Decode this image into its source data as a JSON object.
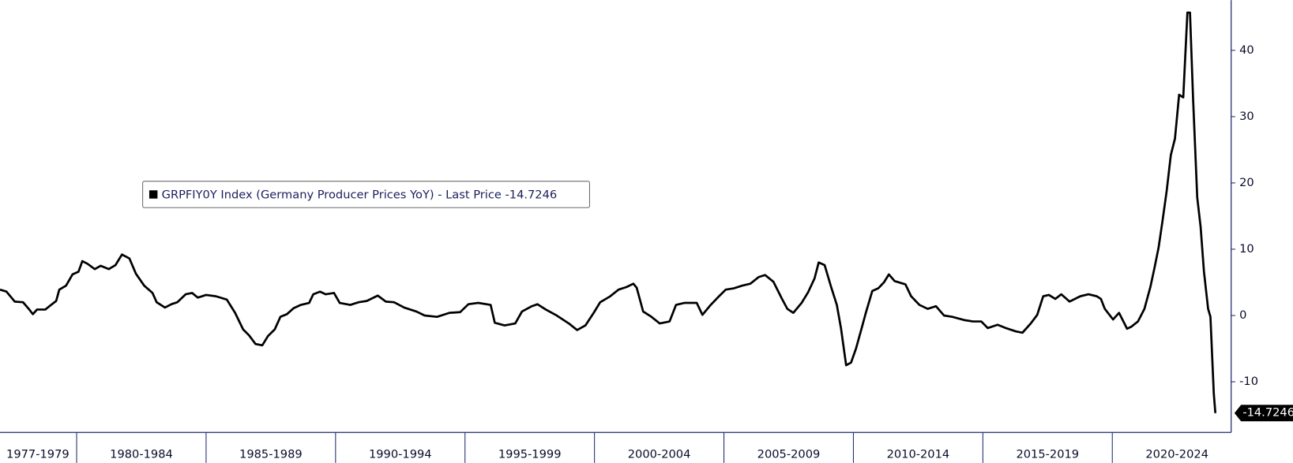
{
  "chart_data": {
    "type": "line",
    "xlim": [
      1977.04,
      2024.59
    ],
    "ylim": [
      -17.64,
      47.58
    ],
    "yticks": [
      -10,
      0,
      10,
      20,
      30,
      40
    ],
    "x_periods": [
      {
        "label": "1977-1979",
        "start": 1977,
        "end": 1980
      },
      {
        "label": "1980-1984",
        "start": 1980,
        "end": 1985
      },
      {
        "label": "1985-1989",
        "start": 1985,
        "end": 1990
      },
      {
        "label": "1990-1994",
        "start": 1990,
        "end": 1995
      },
      {
        "label": "1995-1999",
        "start": 1995,
        "end": 2000
      },
      {
        "label": "2000-2004",
        "start": 2000,
        "end": 2005
      },
      {
        "label": "2005-2009",
        "start": 2005,
        "end": 2010
      },
      {
        "label": "2010-2014",
        "start": 2010,
        "end": 2015
      },
      {
        "label": "2015-2019",
        "start": 2015,
        "end": 2020
      },
      {
        "label": "2020-2024",
        "start": 2020,
        "end": 2025
      }
    ],
    "x": [
      1977.04,
      1977.29,
      1977.61,
      1977.93,
      1978.15,
      1978.31,
      1978.47,
      1978.79,
      1978.95,
      1979.21,
      1979.33,
      1979.59,
      1979.84,
      1980.07,
      1980.22,
      1980.42,
      1980.7,
      1980.93,
      1981.24,
      1981.5,
      1981.75,
      1982.04,
      1982.29,
      1982.61,
      1982.93,
      1983.09,
      1983.41,
      1983.66,
      1983.89,
      1984.21,
      1984.46,
      1984.68,
      1985.0,
      1985.38,
      1985.8,
      1986.12,
      1986.43,
      1986.66,
      1986.91,
      1987.17,
      1987.39,
      1987.65,
      1987.87,
      1988.12,
      1988.38,
      1988.66,
      1988.98,
      1989.14,
      1989.4,
      1989.62,
      1989.94,
      1990.16,
      1990.57,
      1990.89,
      1991.21,
      1991.63,
      1991.94,
      1992.26,
      1992.65,
      1993.12,
      1993.44,
      1993.92,
      1994.4,
      1994.81,
      1995.13,
      1995.51,
      1995.99,
      1996.15,
      1996.53,
      1996.94,
      1997.2,
      1997.58,
      1997.8,
      1998.12,
      1998.54,
      1999.01,
      1999.33,
      1999.65,
      1999.97,
      2000.22,
      2000.61,
      2000.93,
      2001.24,
      2001.5,
      2001.63,
      2001.88,
      2002.2,
      2002.52,
      2002.9,
      2003.15,
      2003.47,
      2003.95,
      2004.17,
      2004.49,
      2004.81,
      2005.07,
      2005.38,
      2005.7,
      2006.02,
      2006.34,
      2006.59,
      2006.91,
      2007.23,
      2007.45,
      2007.68,
      2008.0,
      2008.25,
      2008.5,
      2008.66,
      2008.89,
      2009.14,
      2009.36,
      2009.52,
      2009.72,
      2009.91,
      2010.1,
      2010.32,
      2010.48,
      2010.73,
      2010.96,
      2011.18,
      2011.37,
      2011.59,
      2012.01,
      2012.23,
      2012.55,
      2012.87,
      2013.19,
      2013.5,
      2013.82,
      2014.3,
      2014.62,
      2014.94,
      2015.19,
      2015.57,
      2015.89,
      2016.28,
      2016.53,
      2016.85,
      2017.1,
      2017.33,
      2017.55,
      2017.8,
      2018.03,
      2018.35,
      2018.76,
      2019.08,
      2019.4,
      2019.56,
      2019.71,
      2020.03,
      2020.26,
      2020.57,
      2020.73,
      2020.99,
      2021.24,
      2021.47,
      2021.63,
      2021.79,
      2021.94,
      2022.1,
      2022.26,
      2022.42,
      2022.58,
      2022.74,
      2022.9,
      2023.0,
      2023.12,
      2023.28,
      2023.41,
      2023.54,
      2023.7,
      2023.79,
      2023.92,
      2023.98
    ],
    "series": [
      {
        "name": "GRPFIY0Y Index (Germany Producer Prices YoY) - Last Price -14.7246",
        "color": "#000000",
        "values": [
          3.9,
          3.6,
          2.1,
          2.0,
          1.0,
          0.2,
          0.9,
          0.9,
          1.4,
          2.2,
          3.9,
          4.5,
          6.2,
          6.6,
          8.2,
          7.8,
          7.0,
          7.5,
          7.0,
          7.6,
          9.2,
          8.6,
          6.3,
          4.5,
          3.4,
          2.0,
          1.2,
          1.7,
          2.0,
          3.2,
          3.4,
          2.7,
          3.1,
          2.9,
          2.4,
          0.4,
          -2.1,
          -3.0,
          -4.3,
          -4.5,
          -3.1,
          -2.1,
          -0.2,
          0.2,
          1.1,
          1.6,
          1.9,
          3.2,
          3.6,
          3.2,
          3.4,
          1.9,
          1.6,
          2.0,
          2.2,
          3.0,
          2.1,
          2.0,
          1.2,
          0.6,
          0,
          -0.2,
          0.4,
          0.5,
          1.7,
          1.9,
          1.6,
          -1.1,
          -1.5,
          -1.2,
          0.6,
          1.4,
          1.7,
          0.9,
          0,
          -1.2,
          -2.2,
          -1.5,
          0.4,
          2.0,
          2.9,
          3.9,
          4.3,
          4.8,
          4.2,
          0.6,
          -0.2,
          -1.2,
          -0.9,
          1.6,
          1.9,
          1.9,
          0.1,
          1.6,
          2.9,
          3.9,
          4.1,
          4.5,
          4.8,
          5.8,
          6.1,
          5.1,
          2.6,
          1.0,
          0.4,
          1.9,
          3.5,
          5.6,
          8.0,
          7.6,
          4.3,
          1.6,
          -1.9,
          -7.5,
          -7.1,
          -5.0,
          -1.9,
          0.4,
          3.7,
          4.1,
          5.0,
          6.2,
          5.2,
          4.7,
          2.9,
          1.6,
          1.0,
          1.4,
          0,
          -0.2,
          -0.7,
          -0.9,
          -0.9,
          -1.9,
          -1.4,
          -1.9,
          -2.4,
          -2.6,
          -1.2,
          0.1,
          2.9,
          3.1,
          2.5,
          3.2,
          2.1,
          2.9,
          3.2,
          2.9,
          2.5,
          1.0,
          -0.6,
          0.4,
          -2.0,
          -1.7,
          -0.9,
          1.0,
          4.3,
          7.2,
          10.3,
          14.3,
          18.8,
          24.2,
          26.7,
          33.3,
          32.9,
          45.7,
          45.7,
          32.7,
          17.8,
          13.4,
          6.6,
          1.0,
          -0.2,
          -11.8,
          -14.7246
        ]
      }
    ]
  }
}
